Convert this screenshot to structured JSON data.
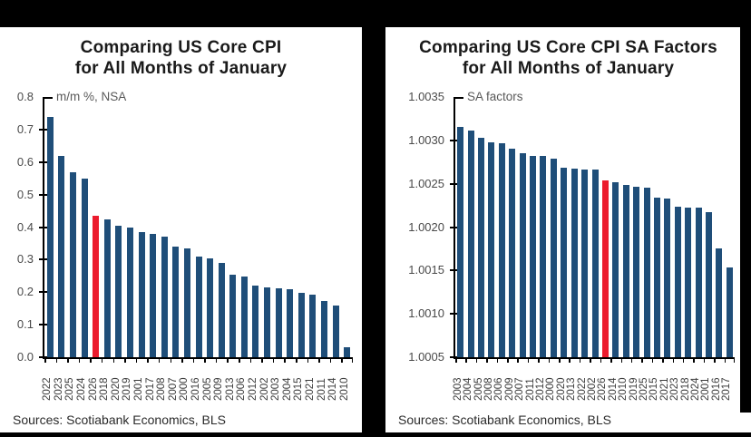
{
  "page": {
    "background": "#000000",
    "panel_background": "#ffffff"
  },
  "colors": {
    "bar": "#1F4E79",
    "highlight": "#EC1B2D",
    "axis": "#000000",
    "title": "#1a1a1a",
    "tick_label": "#4a4a4a",
    "axis_note": "#595959",
    "source_text": "#2b2b2b"
  },
  "panels": [
    {
      "title_line1": "Comparing US Core CPI",
      "title_line2": "for All Months of January",
      "axis_note": "m/m %, NSA",
      "source": "Sources: Scotiabank Economics, BLS"
    },
    {
      "title_line1": "Comparing US Core CPI SA Factors",
      "title_line2": "for All Months of January",
      "axis_note": "SA factors",
      "source": "Sources: Scotiabank Economics, BLS"
    }
  ],
  "chart_data": [
    {
      "type": "bar",
      "title": "Comparing US Core CPI for All Months of January",
      "ylabel": "m/m %, NSA",
      "xlabel": "",
      "legend": "none",
      "grid": false,
      "ylim": [
        0.0,
        0.8
      ],
      "yticks": [
        "0.8",
        "0.7",
        "0.6",
        "0.5",
        "0.4",
        "0.3",
        "0.2",
        "0.1",
        "0.0"
      ],
      "categories": [
        "2022",
        "2023",
        "2025",
        "2024",
        "2026",
        "2018",
        "2020",
        "2019",
        "2001",
        "2017",
        "2008",
        "2007",
        "2000",
        "2016",
        "2005",
        "2009",
        "2013",
        "2006",
        "2012",
        "2002",
        "2003",
        "2004",
        "2015",
        "2021",
        "2011",
        "2014",
        "2010"
      ],
      "values": [
        0.74,
        0.62,
        0.57,
        0.55,
        0.435,
        0.425,
        0.405,
        0.4,
        0.385,
        0.38,
        0.37,
        0.34,
        0.335,
        0.31,
        0.305,
        0.29,
        0.253,
        0.248,
        0.22,
        0.214,
        0.211,
        0.209,
        0.197,
        0.193,
        0.174,
        0.158,
        0.031
      ],
      "highlight_index": 4,
      "highlight_category": "2026"
    },
    {
      "type": "bar",
      "title": "Comparing US Core CPI SA Factors for All Months of January",
      "ylabel": "SA factors",
      "xlabel": "",
      "legend": "none",
      "grid": false,
      "ylim": [
        1.0005,
        1.0035
      ],
      "yticks": [
        "1.0035",
        "1.0030",
        "1.0025",
        "1.0020",
        "1.0015",
        "1.0010",
        "1.0005"
      ],
      "categories": [
        "2003",
        "2004",
        "2005",
        "2008",
        "2006",
        "2009",
        "2007",
        "2011",
        "2012",
        "2000",
        "2020",
        "2013",
        "2022",
        "2002",
        "2026",
        "2014",
        "2010",
        "2019",
        "2025",
        "2015",
        "2021",
        "2023",
        "2018",
        "2024",
        "2001",
        "2016",
        "2017"
      ],
      "values": [
        1.00315,
        1.00311,
        1.00303,
        1.00298,
        1.00297,
        1.0029,
        1.00285,
        1.00282,
        1.00282,
        1.00279,
        1.00268,
        1.00267,
        1.00266,
        1.00266,
        1.00254,
        1.00252,
        1.00249,
        1.00247,
        1.00245,
        1.00234,
        1.00233,
        1.00224,
        1.00222,
        1.00222,
        1.00217,
        1.00175,
        1.00153
      ],
      "highlight_index": 14,
      "highlight_category": "2026"
    }
  ]
}
